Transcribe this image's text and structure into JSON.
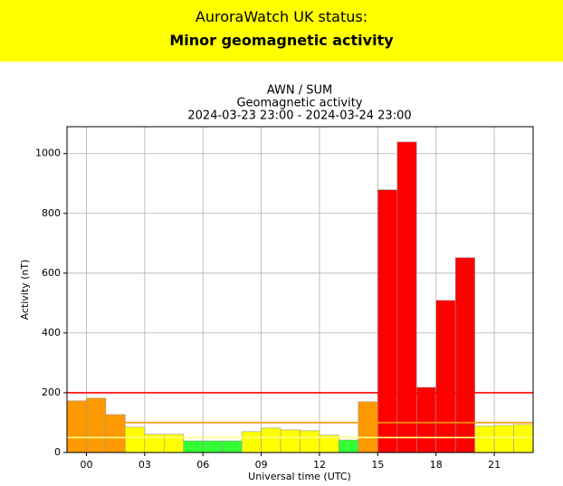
{
  "header": {
    "label": "AuroraWatch UK status:",
    "status": "Minor geomagnetic activity"
  },
  "chart_data": {
    "type": "bar",
    "title": [
      "AWN / SUM",
      "Geomagnetic activity",
      "2024-03-23 23:00 - 2024-03-24 23:00"
    ],
    "x_label": "Universal time (UTC)",
    "y_label": "Activity (nT)",
    "x": [
      -1,
      0,
      1,
      2,
      3,
      4,
      5,
      6,
      7,
      8,
      9,
      10,
      11,
      12,
      13,
      14,
      15,
      16,
      17,
      18,
      19,
      20,
      21,
      22
    ],
    "values": [
      173,
      182,
      127,
      85,
      61,
      61,
      39,
      39,
      39,
      70,
      82,
      76,
      73,
      58,
      42,
      170,
      879,
      1039,
      218,
      509,
      652,
      88,
      91,
      94
    ],
    "colors": [
      "#ff9900",
      "#ff9900",
      "#ff9900",
      "#ffff00",
      "#ffff00",
      "#ffff00",
      "#33ff33",
      "#33ff33",
      "#33ff33",
      "#ffff00",
      "#ffff00",
      "#ffff00",
      "#ffff00",
      "#ffff00",
      "#33ff33",
      "#ff9900",
      "#ff0000",
      "#ff0000",
      "#ff0000",
      "#ff0000",
      "#ff0000",
      "#ffff00",
      "#ffff00",
      "#ffff00"
    ],
    "bar_width": 1,
    "thresholds": [
      {
        "value": 50,
        "color": "#ffff80"
      },
      {
        "value": 100,
        "color": "#ff9900"
      },
      {
        "value": 200,
        "color": "#ff0000"
      }
    ],
    "xlim": [
      -1,
      23
    ],
    "ylim": [
      0,
      1090
    ],
    "xticks": [
      {
        "value": 0,
        "label": "00"
      },
      {
        "value": 3,
        "label": "03"
      },
      {
        "value": 6,
        "label": "06"
      },
      {
        "value": 9,
        "label": "09"
      },
      12,
      15,
      18,
      21
    ],
    "yticks": [
      0,
      200,
      400,
      600,
      800,
      1000
    ],
    "grid": true
  }
}
